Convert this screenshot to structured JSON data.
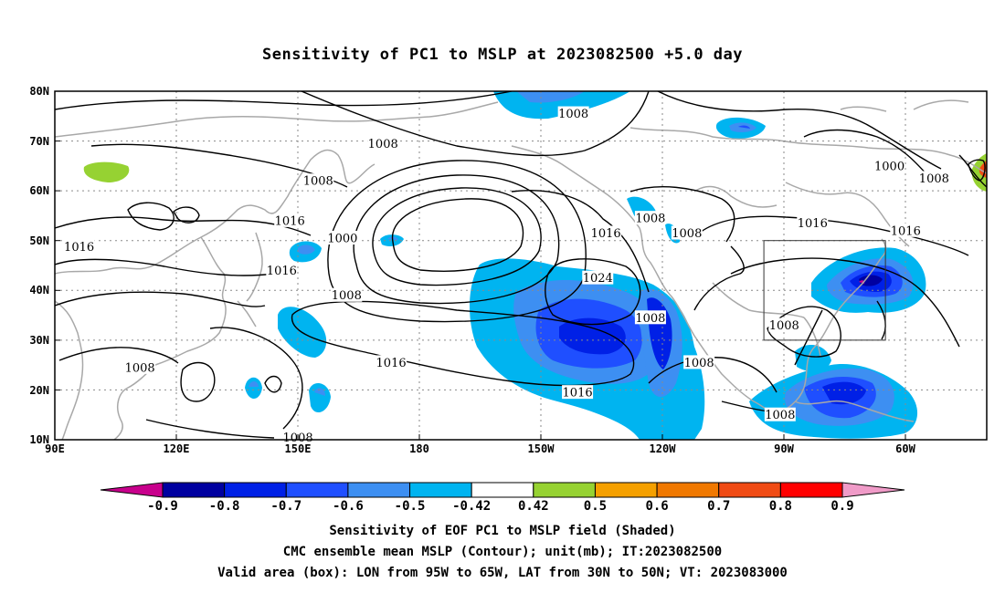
{
  "title": "Sensitivity of PC1 to MSLP at 2023082500 +5.0 day",
  "map": {
    "lat_ticks": [
      "80N",
      "70N",
      "60N",
      "50N",
      "40N",
      "30N",
      "20N",
      "10N"
    ],
    "lon_ticks": [
      "90E",
      "120E",
      "150E",
      "180",
      "150W",
      "120W",
      "90W",
      "60W"
    ],
    "lon_range_deg_east": [
      90,
      320
    ],
    "lat_range": [
      10,
      80
    ],
    "grid": "dotted",
    "contour_interval_mb": 8,
    "contour_labels": [
      {
        "text": "1008",
        "lon": -142,
        "lat": 75.5
      },
      {
        "text": "1008",
        "lon": 171,
        "lat": 69.5
      },
      {
        "text": "1008",
        "lon": 155,
        "lat": 62
      },
      {
        "text": "1016",
        "lon": 148,
        "lat": 54
      },
      {
        "text": "1016",
        "lon": 96,
        "lat": 48.8
      },
      {
        "text": "1016",
        "lon": 146,
        "lat": 44
      },
      {
        "text": "1000",
        "lon": 161,
        "lat": 50.5
      },
      {
        "text": "1008",
        "lon": 162,
        "lat": 39
      },
      {
        "text": "1016",
        "lon": -134,
        "lat": 51.5
      },
      {
        "text": "1008",
        "lon": -123,
        "lat": 54.5
      },
      {
        "text": "1008",
        "lon": -114,
        "lat": 51.5
      },
      {
        "text": "1024",
        "lon": -136,
        "lat": 42.5
      },
      {
        "text": "1008",
        "lon": -123,
        "lat": 34.5
      },
      {
        "text": "1016",
        "lon": 173,
        "lat": 25.5
      },
      {
        "text": "1016",
        "lon": -141,
        "lat": 19.5
      },
      {
        "text": "1008",
        "lon": 111,
        "lat": 24.5
      },
      {
        "text": "1008",
        "lon": 150,
        "lat": 10.5
      },
      {
        "text": "1008",
        "lon": -111,
        "lat": 25.5
      },
      {
        "text": "1008",
        "lon": -90,
        "lat": 33
      },
      {
        "text": "1008",
        "lon": -91,
        "lat": 15
      },
      {
        "text": "1016",
        "lon": -83,
        "lat": 53.5
      },
      {
        "text": "1016",
        "lon": -60,
        "lat": 52
      },
      {
        "text": "1000",
        "lon": -64,
        "lat": 65
      },
      {
        "text": "1008",
        "lon": -53,
        "lat": 62.5
      }
    ],
    "valid_box": {
      "lon_from": -95,
      "lon_to": -65,
      "lat_from": 30,
      "lat_to": 50
    }
  },
  "colorbar": {
    "labels": [
      "-0.9",
      "-0.8",
      "-0.7",
      "-0.6",
      "-0.5",
      "-0.42",
      "0.42",
      "0.5",
      "0.6",
      "0.7",
      "0.8",
      "0.9"
    ],
    "colors": [
      "#0000a0",
      "#0020e6",
      "#1f4fff",
      "#3d8ff2",
      "#00b4f0",
      "#ffffff",
      "#96d232",
      "#f5a000",
      "#f07800",
      "#f04b14",
      "#ff0000"
    ],
    "end_low_color": "#c8008c",
    "end_high_color": "#f09bc8"
  },
  "captions": [
    "Sensitivity of EOF PC1 to MSLP field (Shaded)",
    "CMC ensemble mean MSLP (Contour); unit(mb); IT:2023082500",
    "Valid area (box): LON from 95W to 65W, LAT from 30N to 50N; VT: 2023083000"
  ]
}
